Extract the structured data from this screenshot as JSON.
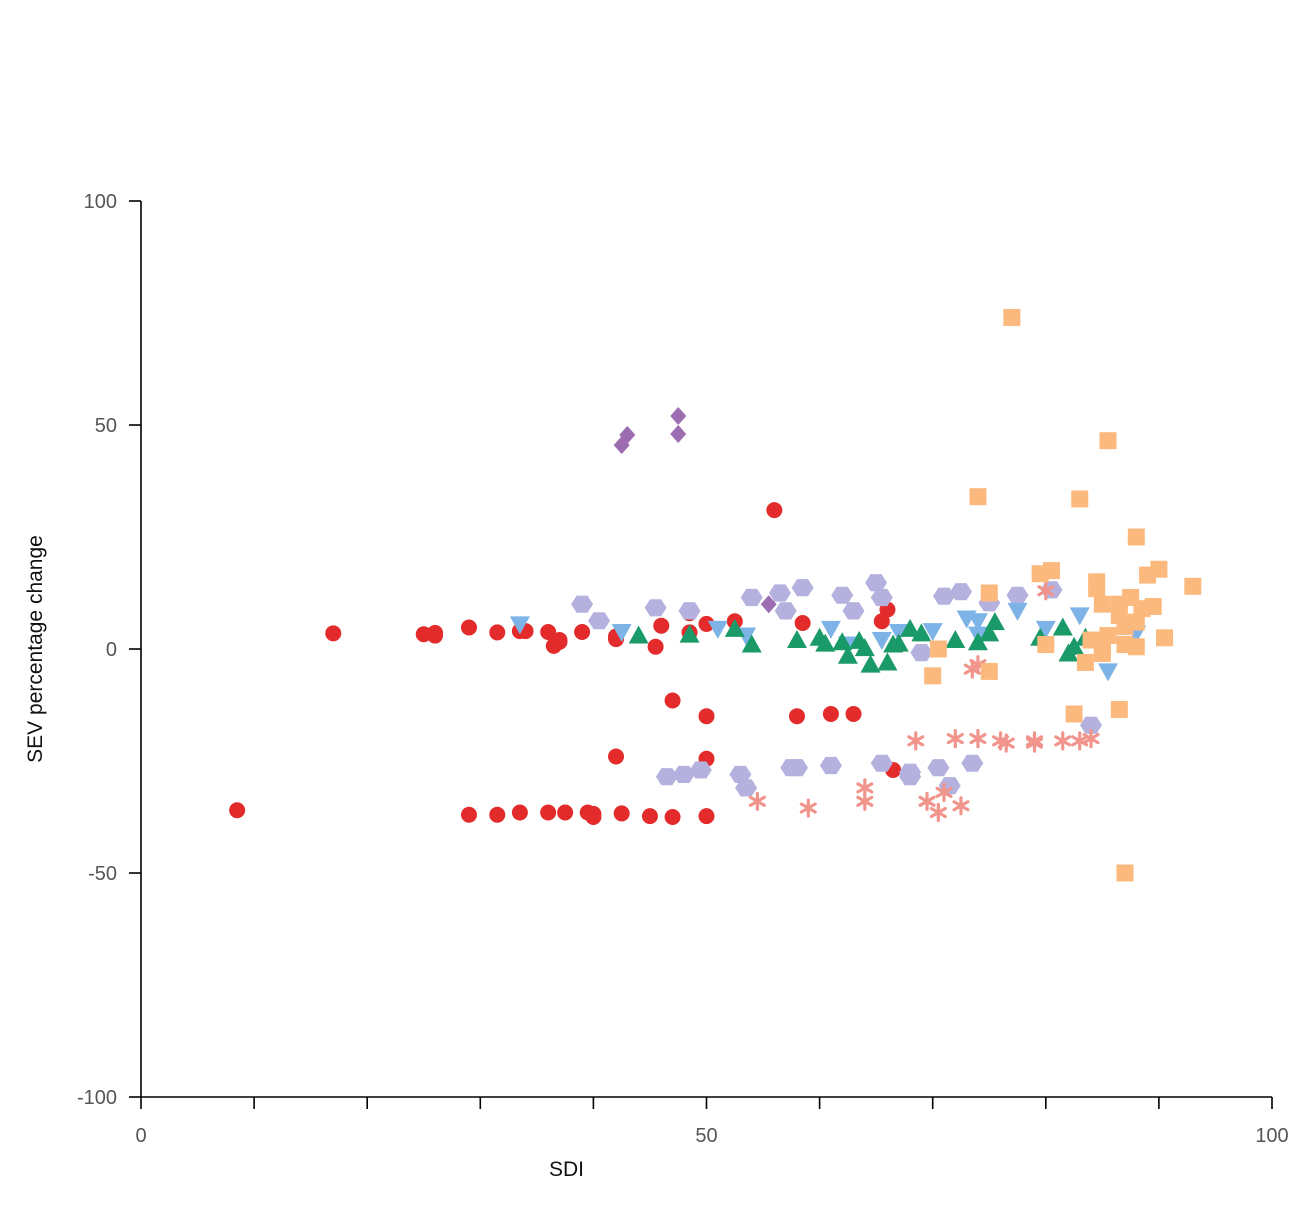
{
  "chart_data": {
    "type": "scatter",
    "title": "",
    "xlabel": "SDI",
    "ylabel": "SEV percentage change",
    "xlim": [
      0,
      100
    ],
    "ylim": [
      -100,
      100
    ],
    "x_major_ticks": [
      0,
      50,
      100
    ],
    "x_minor_ticks": [
      10,
      20,
      30,
      40,
      60,
      70,
      80,
      90
    ],
    "x_tick_labels": [
      "0",
      "50",
      "100"
    ],
    "y_ticks": [
      100,
      50,
      0,
      -50,
      -100
    ],
    "y_tick_labels": [
      "100",
      "50",
      "0",
      "-50",
      "-100"
    ],
    "grid": false,
    "legend": "none",
    "series": [
      {
        "marker": "circle",
        "color": "#e32b2b",
        "points": [
          [
            8.5,
            -36
          ],
          [
            17,
            3.5
          ],
          [
            25,
            3.3
          ],
          [
            26,
            3.6
          ],
          [
            26,
            3
          ],
          [
            29,
            4.8
          ],
          [
            29,
            -37
          ],
          [
            31.5,
            3.7
          ],
          [
            31.5,
            -37
          ],
          [
            33.5,
            4
          ],
          [
            34,
            4
          ],
          [
            33.5,
            -36.5
          ],
          [
            36,
            3.8
          ],
          [
            36,
            -36.5
          ],
          [
            36.5,
            0.7
          ],
          [
            37,
            1.6
          ],
          [
            37,
            2
          ],
          [
            37.5,
            -36.5
          ],
          [
            39,
            3.8
          ],
          [
            39.5,
            -36.5
          ],
          [
            40,
            -37.5
          ],
          [
            40,
            -36.8
          ],
          [
            42,
            2.8
          ],
          [
            42,
            2.2
          ],
          [
            42,
            -24
          ],
          [
            42.5,
            -36.7
          ],
          [
            45,
            -37.3
          ],
          [
            45.5,
            0.5
          ],
          [
            46,
            5.2
          ],
          [
            47,
            -11.5
          ],
          [
            47,
            -37.5
          ],
          [
            48.5,
            8
          ],
          [
            48.5,
            3.7
          ],
          [
            50,
            5.6
          ],
          [
            50,
            -15
          ],
          [
            50,
            -24.5
          ],
          [
            50,
            -37.3
          ],
          [
            52.5,
            6.2
          ],
          [
            56,
            31
          ],
          [
            58,
            -15
          ],
          [
            58.5,
            5.8
          ],
          [
            61,
            -14.5
          ],
          [
            63,
            -14.5
          ],
          [
            65.5,
            6.2
          ],
          [
            66,
            8.8
          ],
          [
            66.5,
            -27
          ]
        ]
      },
      {
        "marker": "diamond",
        "color": "#9c6db0",
        "points": [
          [
            42.5,
            45.5
          ],
          [
            43,
            47.8
          ],
          [
            47.5,
            52
          ],
          [
            47.5,
            48
          ],
          [
            55.5,
            10
          ]
        ]
      },
      {
        "marker": "hexagon",
        "color": "#b4b1de",
        "points": [
          [
            39,
            10
          ],
          [
            40.5,
            6.3
          ],
          [
            45.5,
            9.2
          ],
          [
            46.5,
            -28.5
          ],
          [
            48,
            -28
          ],
          [
            48.5,
            8.5
          ],
          [
            49.5,
            -27
          ],
          [
            53,
            -28
          ],
          [
            53.5,
            -31
          ],
          [
            54,
            11.5
          ],
          [
            56.5,
            12.5
          ],
          [
            57,
            8.5
          ],
          [
            57.5,
            -26.5
          ],
          [
            58,
            -26.5
          ],
          [
            58.5,
            13.7
          ],
          [
            61,
            -26
          ],
          [
            62,
            12
          ],
          [
            63,
            8.5
          ],
          [
            65,
            14.8
          ],
          [
            65.5,
            11.5
          ],
          [
            65.5,
            -25.5
          ],
          [
            68,
            -27.5
          ],
          [
            68,
            -28.5
          ],
          [
            69,
            -0.8
          ],
          [
            70.5,
            -26.5
          ],
          [
            71,
            11.8
          ],
          [
            71.5,
            -30.5
          ],
          [
            72.5,
            12.8
          ],
          [
            73.5,
            -25.5
          ],
          [
            75,
            10.3
          ],
          [
            77.5,
            12
          ],
          [
            80.5,
            13.2
          ],
          [
            84,
            -17
          ]
        ]
      },
      {
        "marker": "triangle-down",
        "color": "#7db3e6",
        "points": [
          [
            33.5,
            5.5
          ],
          [
            42.5,
            3.8
          ],
          [
            51,
            4.5
          ],
          [
            53.5,
            3
          ],
          [
            61,
            4.5
          ],
          [
            62.5,
            1
          ],
          [
            65.5,
            2
          ],
          [
            67,
            3.8
          ],
          [
            70,
            4
          ],
          [
            73,
            6.8
          ],
          [
            74,
            6.2
          ],
          [
            74,
            3.2
          ],
          [
            77.5,
            8.5
          ],
          [
            80,
            4.5
          ],
          [
            83,
            7.5
          ],
          [
            85.5,
            -5
          ],
          [
            88,
            3.5
          ]
        ]
      },
      {
        "marker": "triangle-up",
        "color": "#1a9a68",
        "points": [
          [
            44,
            3
          ],
          [
            48.5,
            3.2
          ],
          [
            52.5,
            4.5
          ],
          [
            54,
            1
          ],
          [
            58,
            2
          ],
          [
            60,
            2.5
          ],
          [
            60.5,
            1.2
          ],
          [
            62,
            1.5
          ],
          [
            62.5,
            -1.5
          ],
          [
            63.5,
            1.8
          ],
          [
            64,
            0.2
          ],
          [
            64.5,
            -3.5
          ],
          [
            66,
            -3
          ],
          [
            66.5,
            1
          ],
          [
            67,
            1.2
          ],
          [
            68,
            4.5
          ],
          [
            69,
            3.5
          ],
          [
            72,
            2
          ],
          [
            74,
            1.5
          ],
          [
            75,
            3.5
          ],
          [
            75.5,
            6
          ],
          [
            79.5,
            2.5
          ],
          [
            81.5,
            4.8
          ],
          [
            82,
            -1
          ],
          [
            82.5,
            0.5
          ],
          [
            83.5,
            2.5
          ]
        ]
      },
      {
        "marker": "asterisk",
        "color": "#f1948c",
        "points": [
          [
            54.5,
            -34
          ],
          [
            59,
            -35.5
          ],
          [
            64,
            -34
          ],
          [
            64,
            -31
          ],
          [
            68.5,
            -20.5
          ],
          [
            69.5,
            -34
          ],
          [
            70.5,
            -36.5
          ],
          [
            71,
            -32
          ],
          [
            72,
            -20
          ],
          [
            72.5,
            -35
          ],
          [
            73.5,
            -4.5
          ],
          [
            74,
            -3.5
          ],
          [
            74,
            -20
          ],
          [
            76,
            -20.5
          ],
          [
            76.5,
            -21
          ],
          [
            79,
            -20.5
          ],
          [
            79,
            -21
          ],
          [
            80,
            13
          ],
          [
            81.5,
            -20.5
          ],
          [
            83,
            -20.5
          ],
          [
            84,
            -20
          ]
        ]
      },
      {
        "marker": "square",
        "color": "#fbb97e",
        "points": [
          [
            70,
            -6
          ],
          [
            70.5,
            0
          ],
          [
            74,
            34
          ],
          [
            75,
            12.5
          ],
          [
            75,
            -5
          ],
          [
            77,
            74
          ],
          [
            79.5,
            16.8
          ],
          [
            80,
            1
          ],
          [
            80.5,
            17.5
          ],
          [
            82.5,
            -14.5
          ],
          [
            83,
            33.5
          ],
          [
            83.5,
            -3
          ],
          [
            84,
            2
          ],
          [
            84.5,
            15
          ],
          [
            84.5,
            13.5
          ],
          [
            85,
            10
          ],
          [
            85,
            0
          ],
          [
            85,
            -1
          ],
          [
            85.5,
            3
          ],
          [
            85.5,
            46.5
          ],
          [
            86.5,
            10
          ],
          [
            86.5,
            7.5
          ],
          [
            87,
            5
          ],
          [
            86.5,
            -13.5
          ],
          [
            87,
            -50
          ],
          [
            87,
            1
          ],
          [
            87.5,
            11.5
          ],
          [
            88,
            25
          ],
          [
            88,
            6
          ],
          [
            88,
            0.5
          ],
          [
            88.5,
            9
          ],
          [
            89,
            16.5
          ],
          [
            89.5,
            9.5
          ],
          [
            90,
            17.8
          ],
          [
            90.5,
            2.5
          ],
          [
            93,
            14
          ]
        ]
      }
    ]
  }
}
